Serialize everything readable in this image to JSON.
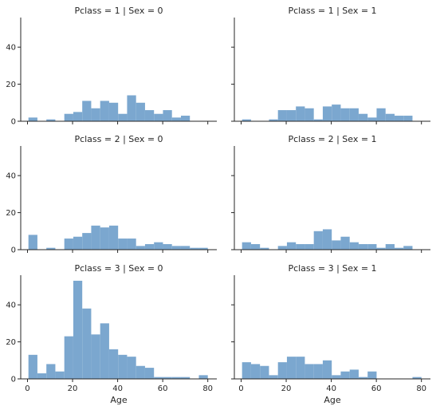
{
  "chart_data": {
    "type": "bar",
    "layout": "facet-grid",
    "xlabel": "Age",
    "ylabel": "",
    "xlim": [
      -3,
      84
    ],
    "ylim": [
      0,
      56
    ],
    "x_ticks": [
      0,
      20,
      40,
      60,
      80
    ],
    "y_ticks": [
      0,
      20,
      40
    ],
    "bar_color": "#7ba7cf",
    "bins": [
      0.42,
      4.4,
      8.38,
      12.36,
      16.34,
      20.32,
      24.3,
      28.27,
      32.25,
      36.23,
      40.21,
      44.19,
      48.17,
      52.15,
      56.13,
      60.11,
      64.09,
      68.07,
      72.05,
      76.03,
      80.01
    ],
    "panels": [
      {
        "title": "Pclass = 1 | Sex = 0",
        "counts": [
          2,
          0,
          1,
          0,
          4,
          5,
          11,
          7,
          11,
          10,
          4,
          14,
          10,
          6,
          4,
          6,
          2,
          3,
          0,
          0,
          1
        ]
      },
      {
        "title": "Pclass = 1 | Sex = 1",
        "counts": [
          1,
          0,
          0,
          1,
          6,
          6,
          8,
          7,
          1,
          8,
          9,
          7,
          7,
          4,
          2,
          7,
          4,
          3,
          3,
          0,
          0
        ]
      },
      {
        "title": "Pclass = 2 | Sex = 0",
        "counts": [
          8,
          0,
          1,
          0,
          6,
          7,
          9,
          13,
          12,
          13,
          6,
          6,
          2,
          3,
          4,
          3,
          2,
          2,
          1,
          1,
          0
        ]
      },
      {
        "title": "Pclass = 2 | Sex = 1",
        "counts": [
          4,
          3,
          1,
          0,
          2,
          4,
          3,
          3,
          10,
          11,
          5,
          7,
          4,
          3,
          3,
          1,
          3,
          1,
          2,
          0,
          0
        ]
      },
      {
        "title": "Pclass = 3 | Sex = 0",
        "counts": [
          13,
          3,
          8,
          4,
          23,
          53,
          38,
          24,
          30,
          16,
          13,
          12,
          7,
          6,
          1,
          1,
          1,
          1,
          0,
          2,
          0
        ]
      },
      {
        "title": "Pclass = 3 | Sex = 1",
        "counts": [
          9,
          8,
          7,
          2,
          9,
          12,
          12,
          8,
          8,
          10,
          2,
          4,
          5,
          1,
          4,
          0,
          0,
          0,
          0,
          1,
          0
        ]
      }
    ]
  }
}
